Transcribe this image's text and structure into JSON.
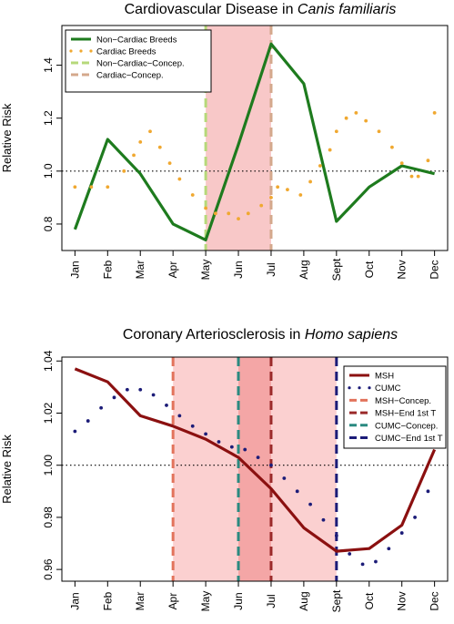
{
  "chart_data": [
    {
      "type": "line",
      "title_prefix": "Cardiovascular Disease in ",
      "title_italic": "Canis familiaris",
      "ylabel": "Relative Risk",
      "xlabel": "",
      "categories": [
        "Jan",
        "Feb",
        "Mar",
        "Apr",
        "May",
        "Jun",
        "Jul",
        "Aug",
        "Sept",
        "Oct",
        "Nov",
        "Dec"
      ],
      "ylim": [
        0.7,
        1.55
      ],
      "yticks": [
        0.8,
        1.0,
        1.2,
        1.4
      ],
      "ytick_labels": [
        "0.8",
        "1.0",
        "1.2",
        "1.4"
      ],
      "reference_line": 1.0,
      "shade": {
        "from": 4,
        "to": 6,
        "color": "#f8c8c8"
      },
      "vlines": [
        {
          "x": 4,
          "color": "#b6d97a",
          "name": "Non−Cardiac−Concep."
        },
        {
          "x": 6,
          "color": "#d4a88c",
          "name": "Cardiac−Concep."
        }
      ],
      "series": [
        {
          "name": "Non−Cardiac Breeds",
          "style": "line",
          "color": "#1e7b1e",
          "x": [
            0,
            1,
            2,
            3,
            4,
            5,
            6,
            7,
            8,
            9,
            10,
            11
          ],
          "values": [
            0.78,
            1.12,
            0.99,
            0.8,
            0.74,
            1.1,
            1.48,
            1.33,
            0.81,
            0.94,
            1.02,
            0.99
          ]
        },
        {
          "name": "Cardiac Breeds",
          "style": "dots",
          "color": "#f0a830",
          "x": [
            0,
            0.5,
            1,
            1.5,
            1.8,
            2,
            2.3,
            2.6,
            2.9,
            3.2,
            3.6,
            4,
            4.3,
            4.7,
            5,
            5.3,
            5.7,
            6,
            6.2,
            6.5,
            6.9,
            7.2,
            7.5,
            7.8,
            8,
            8.3,
            8.6,
            8.9,
            9.3,
            9.7,
            10,
            10.3,
            10.5,
            10.8,
            11
          ],
          "values": [
            0.94,
            0.94,
            0.94,
            1.0,
            1.06,
            1.11,
            1.15,
            1.09,
            1.03,
            0.97,
            0.91,
            0.86,
            0.84,
            0.84,
            0.82,
            0.84,
            0.87,
            0.9,
            0.94,
            0.93,
            0.91,
            0.96,
            1.02,
            1.08,
            1.15,
            1.2,
            1.22,
            1.19,
            1.15,
            1.09,
            1.03,
            0.98,
            0.98,
            1.04,
            1.22
          ]
        }
      ],
      "legend": {
        "placement": "top-left",
        "entries": [
          {
            "label": "Non−Cardiac Breeds",
            "style": "line",
            "color": "#1e7b1e"
          },
          {
            "label": "Cardiac Breeds",
            "style": "dots",
            "color": "#f0a830"
          },
          {
            "label": "Non−Cardiac−Concep.",
            "style": "dash",
            "color": "#b6d97a"
          },
          {
            "label": "Cardiac−Concep.",
            "style": "dash",
            "color": "#d4a88c"
          }
        ]
      }
    },
    {
      "type": "line",
      "title_prefix": "Coronary Arteriosclerosis in ",
      "title_italic": "Homo sapiens",
      "ylabel": "Relative Risk",
      "xlabel": "",
      "categories": [
        "Jan",
        "Feb",
        "Mar",
        "Apr",
        "May",
        "Jun",
        "Jul",
        "Aug",
        "Sept",
        "Oct",
        "Nov",
        "Dec"
      ],
      "ylim": [
        0.9555,
        1.0415
      ],
      "yticks": [
        0.96,
        0.98,
        1.0,
        1.02,
        1.04
      ],
      "ytick_labels": [
        "0.96",
        "0.98",
        "1.00",
        "1.02",
        "1.04"
      ],
      "reference_line": 1.0,
      "shades": [
        {
          "from": 3,
          "to": 8,
          "color": "#fbd0d0"
        },
        {
          "from": 5,
          "to": 6,
          "color": "#f4a6a6"
        }
      ],
      "vlines": [
        {
          "x": 3,
          "color": "#e2735c",
          "name": "MSH−Concep."
        },
        {
          "x": 6,
          "color": "#9b2a2a",
          "name": "MSH−End 1st T"
        },
        {
          "x": 5,
          "color": "#2a8a80",
          "name": "CUMC−Concep."
        },
        {
          "x": 8,
          "color": "#1c1c78",
          "name": "CUMC−End 1st T"
        }
      ],
      "series": [
        {
          "name": "MSH",
          "style": "line",
          "color": "#8b1010",
          "x": [
            0,
            1,
            2,
            3,
            4,
            5,
            6,
            7,
            8,
            9,
            10,
            11
          ],
          "values": [
            1.037,
            1.032,
            1.019,
            1.015,
            1.01,
            1.003,
            0.991,
            0.976,
            0.967,
            0.968,
            0.977,
            1.006
          ]
        },
        {
          "name": "CUMC",
          "style": "dots",
          "color": "#1c1c78",
          "x": [
            0,
            0.4,
            0.8,
            1.2,
            1.6,
            2,
            2.4,
            2.8,
            3.2,
            3.6,
            4,
            4.4,
            4.8,
            5.2,
            5.6,
            6,
            6.4,
            6.8,
            7.2,
            7.6,
            8,
            8.4,
            8.8,
            9.2,
            9.6,
            10,
            10.4,
            10.8
          ],
          "values": [
            1.013,
            1.017,
            1.022,
            1.026,
            1.029,
            1.029,
            1.027,
            1.023,
            1.019,
            1.015,
            1.012,
            1.009,
            1.007,
            1.006,
            1.003,
            1.0,
            0.995,
            0.99,
            0.985,
            0.979,
            0.973,
            0.966,
            0.962,
            0.963,
            0.968,
            0.974,
            0.98,
            0.99
          ]
        }
      ],
      "legend": {
        "placement": "top-right",
        "entries": [
          {
            "label": "MSH",
            "style": "line",
            "color": "#8b1010"
          },
          {
            "label": "CUMC",
            "style": "dots",
            "color": "#1c1c78"
          },
          {
            "label": "MSH−Concep.",
            "style": "dash",
            "color": "#e2735c"
          },
          {
            "label": "MSH−End 1st T",
            "style": "dash",
            "color": "#9b2a2a"
          },
          {
            "label": "CUMC−Concep.",
            "style": "dash",
            "color": "#2a8a80"
          },
          {
            "label": "CUMC−End 1st T",
            "style": "dash",
            "color": "#1c1c78"
          }
        ]
      }
    }
  ]
}
